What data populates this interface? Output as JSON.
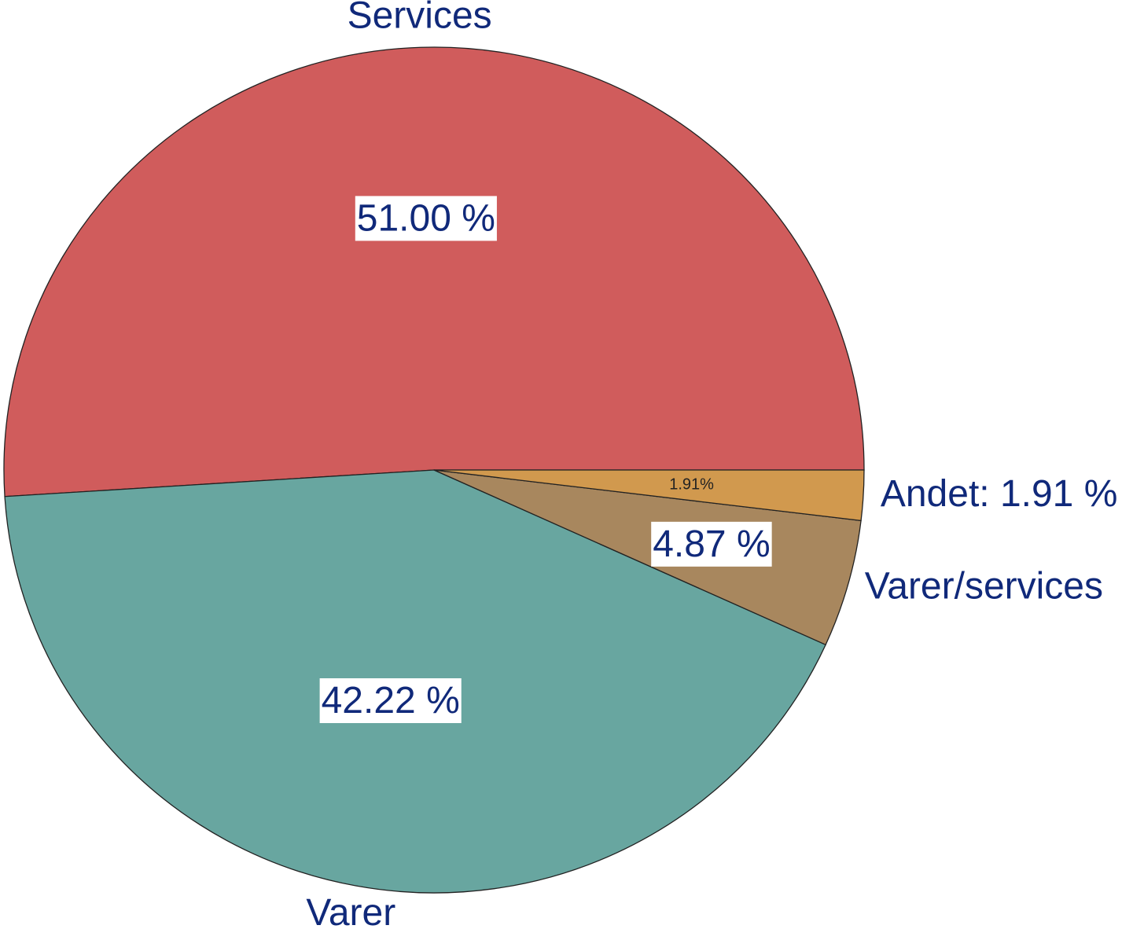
{
  "chart_data": {
    "type": "pie",
    "categories": [
      "Services",
      "Varer",
      "Varer/services",
      "Andet: 1.91 %"
    ],
    "values": [
      51.0,
      42.22,
      4.87,
      1.91
    ],
    "value_labels": [
      "51.00 %",
      "42.22 %",
      "4.87 %",
      "1.91%"
    ],
    "colors": [
      "#d05c5c",
      "#68a6a0",
      "#a8875e",
      "#d1994e"
    ]
  }
}
